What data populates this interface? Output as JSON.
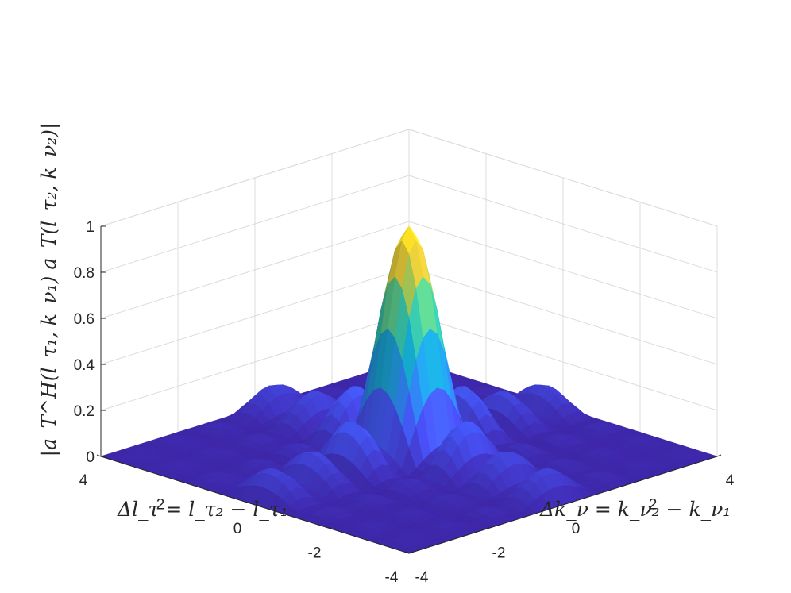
{
  "chart_data": {
    "type": "surface",
    "title": "",
    "xlabel": "Δk_ν = k_ν₂ − k_ν₁",
    "ylabel": "Δl_τ = l_τ₂ − l_τ₁",
    "zlabel": "|a_T^H(l_τ₁, k_ν₁) a_T(l_τ₂, k_ν₂)|",
    "xlim": [
      -4,
      4
    ],
    "ylim": [
      -4,
      4
    ],
    "zlim": [
      0,
      1
    ],
    "x_ticks": [
      "-4",
      "-2",
      "0",
      "2",
      "4"
    ],
    "y_ticks": [
      "-4",
      "-2",
      "0",
      "2",
      "4"
    ],
    "z_ticks": [
      "0",
      "0.2",
      "0.4",
      "0.6",
      "0.8",
      "1"
    ],
    "peak": {
      "x": 0,
      "y": 0,
      "z": 1
    },
    "sidelobe_level": 0.22,
    "grid": true,
    "colormap": "parula",
    "colors": {
      "low": "#3e26a8",
      "mid": "#1fb6c3",
      "high": "#f9fb15",
      "axis": "#262626",
      "grid": "#dcdcdc"
    }
  }
}
